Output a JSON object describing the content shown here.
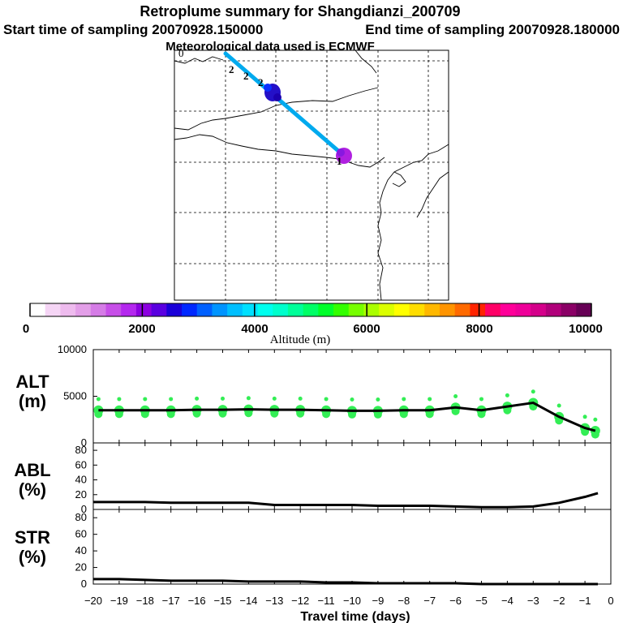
{
  "header": {
    "title": "Retroplume summary for Shangdianzi_200709",
    "start": "Start time of sampling 20070928.150000",
    "end": "End time of sampling 20070928.180000",
    "met": "Meteorological data used is ECMWF"
  },
  "map": {
    "markers": [
      {
        "label": "0"
      },
      {
        "label": "2"
      },
      {
        "label": "2"
      },
      {
        "label": "2"
      },
      {
        "label": "1"
      }
    ]
  },
  "colorbar": {
    "ticks": [
      "0",
      "2000",
      "4000",
      "6000",
      "8000",
      "10000"
    ],
    "label": "Altitude (m)",
    "colors": [
      "#ffffff",
      "#f5d5f5",
      "#eebbee",
      "#e39fe8",
      "#d57ce6",
      "#c74fe8",
      "#b428ee",
      "#8c00e0",
      "#5a00e0",
      "#1a00d8",
      "#0028ff",
      "#0060ff",
      "#0094ff",
      "#00bfff",
      "#00e0ff",
      "#00ffee",
      "#00ffcc",
      "#00ff99",
      "#00ff66",
      "#00ff2a",
      "#33ff00",
      "#77ff00",
      "#aaff00",
      "#dbff00",
      "#ffff00",
      "#ffdd00",
      "#ffb800",
      "#ff9400",
      "#ff6a00",
      "#ff2400",
      "#ff0066",
      "#ff0099",
      "#ee0099",
      "#d4008a",
      "#b0007a",
      "#8a0066",
      "#660055"
    ]
  },
  "chart_data": [
    {
      "type": "line",
      "name": "ALT",
      "ylabel": "ALT (m)",
      "ylabel_line1": "ALT",
      "ylabel_line2": "(m)",
      "ylim": [
        0,
        10000
      ],
      "yticks": [
        "10000",
        "5000",
        "0"
      ],
      "x": [
        -19.8,
        -19,
        -18,
        -17,
        -16,
        -15,
        -14,
        -13,
        -12,
        -11,
        -10,
        -9,
        -8,
        -7,
        -6,
        -5,
        -4,
        -3,
        -2,
        -1,
        -0.6
      ],
      "y": [
        3500,
        3500,
        3500,
        3500,
        3550,
        3550,
        3600,
        3550,
        3550,
        3500,
        3450,
        3450,
        3500,
        3500,
        3800,
        3500,
        3900,
        4300,
        2800,
        1600,
        1300
      ],
      "marker_color": "#33ee55",
      "line_color": "#000000"
    },
    {
      "type": "line",
      "name": "ABL",
      "ylabel": "ABL (%)",
      "ylabel_line1": "ABL",
      "ylabel_line2": "(%)",
      "ylim": [
        0,
        90
      ],
      "yticks": [
        "80",
        "60",
        "40",
        "20",
        "0"
      ],
      "x": [
        -20,
        -19,
        -18,
        -17,
        -16,
        -15,
        -14,
        -13,
        -12,
        -11,
        -10,
        -9,
        -8,
        -7,
        -6,
        -5,
        -4,
        -3,
        -2,
        -1,
        -0.5
      ],
      "y": [
        10,
        10,
        10,
        9,
        9,
        9,
        9,
        6,
        6,
        6,
        6,
        5,
        5,
        5,
        4,
        3,
        3,
        4,
        9,
        17,
        22
      ],
      "line_color": "#000000"
    },
    {
      "type": "line",
      "name": "STR",
      "ylabel": "STR (%)",
      "ylabel_line1": "STR",
      "ylabel_line2": "(%)",
      "ylim": [
        0,
        90
      ],
      "yticks": [
        "80",
        "60",
        "40",
        "20",
        "0"
      ],
      "x": [
        -20,
        -19,
        -18,
        -17,
        -16,
        -15,
        -14,
        -13,
        -12,
        -11,
        -10,
        -9,
        -8,
        -7,
        -6,
        -5,
        -4,
        -3,
        -2,
        -1,
        -0.5
      ],
      "y": [
        6,
        6,
        5,
        4,
        4,
        4,
        3,
        3,
        3,
        2,
        2,
        1,
        1,
        1,
        1,
        0,
        0,
        0,
        0,
        0,
        0
      ],
      "line_color": "#000000"
    }
  ],
  "xaxis": {
    "label": "Travel time (days)",
    "ticks": [
      "−20",
      "−19",
      "−18",
      "−17",
      "−16",
      "−15",
      "−14",
      "−13",
      "−12",
      "−11",
      "−10",
      "−9",
      "−8",
      "−7",
      "−6",
      "−5",
      "−4",
      "−3",
      "−2",
      "−1",
      "0"
    ]
  }
}
